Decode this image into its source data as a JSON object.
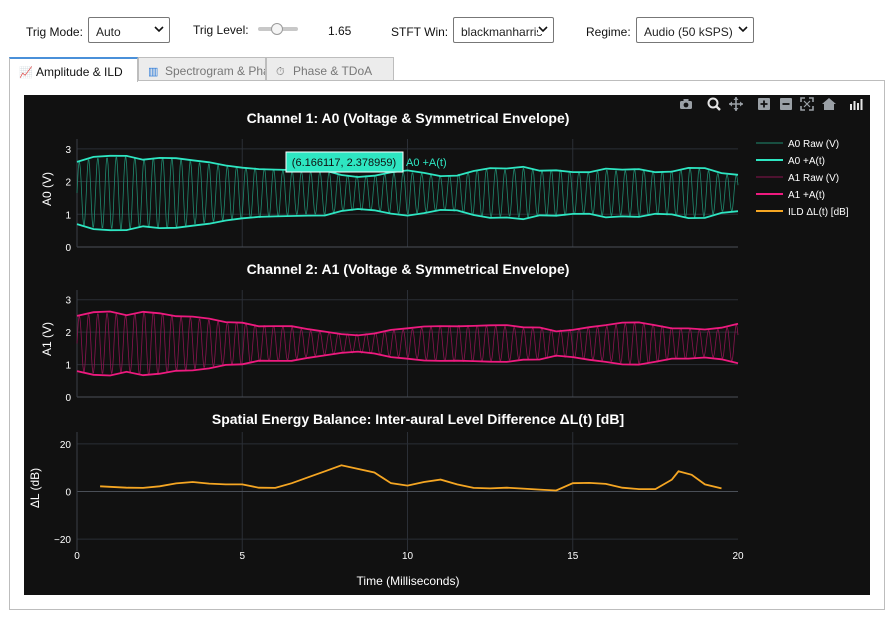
{
  "controls": {
    "trig_mode_label": "Trig Mode:",
    "trig_mode_value": "Auto",
    "trig_level_label": "Trig Level:",
    "trig_level_value": "1.65",
    "stft_label": "STFT Win:",
    "stft_value": "blackmanharris",
    "regime_label": "Regime:",
    "regime_value": "Audio (50 kSPS)"
  },
  "tabs": [
    {
      "label": "Amplitude & ILD",
      "icon": "chart-line-icon",
      "active": true
    },
    {
      "label": "Spectrogram & Pha",
      "icon": "bar-chart-icon",
      "active": false
    },
    {
      "label": "Phase & TDoA",
      "icon": "clock-icon",
      "active": false
    }
  ],
  "modebar": [
    "camera-icon",
    "zoom-icon",
    "pan-icon",
    "zoom-in-icon",
    "zoom-out-icon",
    "autoscale-icon",
    "reset-axes-icon",
    "plotly-logo-icon"
  ],
  "colors": {
    "a0_raw": "#1f8a6f",
    "a0_env": "#2ee6c2",
    "a1_raw": "#8a1450",
    "a1_env": "#ee1a7f",
    "ild": "#f5a623",
    "plot_bg": "#111111",
    "grid": "#2b2f36",
    "text": "#ffffff"
  },
  "hover": {
    "label": "(6.166117, 2.378959)",
    "series": "A0 +A(t)"
  },
  "legend": [
    "A0 Raw (V)",
    "A0 +A(t)",
    "A1 Raw (V)",
    "A1 +A(t)",
    "ILD ΔL(t) [dB]"
  ],
  "chart_data": [
    {
      "type": "line",
      "title": "Channel 1: A0 (Voltage & Symmetrical Envelope)",
      "xlabel": "",
      "ylabel": "A0 (V)",
      "xlim": [
        0,
        20
      ],
      "ylim": [
        0,
        3.3
      ],
      "yticks": [
        "0",
        "1",
        "2",
        "3"
      ],
      "series": [
        {
          "name": "A0 Raw (V)",
          "kind": "raw",
          "period": 0.28
        },
        {
          "name": "A0 +A(t)",
          "x": [
            0,
            0.5,
            1,
            1.5,
            2,
            2.5,
            3,
            3.5,
            4,
            4.5,
            5,
            5.5,
            6,
            6.5,
            7,
            7.5,
            8,
            8.5,
            9,
            9.5,
            10,
            10.5,
            11,
            11.5,
            12,
            12.5,
            13,
            13.5,
            14,
            14.5,
            15,
            15.5,
            16,
            16.5,
            17,
            17.5,
            18,
            18.5,
            19,
            19.5,
            20
          ],
          "y": [
            2.6,
            2.72,
            2.75,
            2.78,
            2.7,
            2.76,
            2.72,
            2.62,
            2.55,
            2.48,
            2.45,
            2.42,
            2.38,
            2.33,
            2.3,
            2.32,
            2.22,
            2.18,
            2.2,
            2.26,
            2.3,
            2.24,
            2.18,
            2.22,
            2.35,
            2.4,
            2.36,
            2.42,
            2.34,
            2.38,
            2.32,
            2.28,
            2.36,
            2.33,
            2.38,
            2.32,
            2.34,
            2.42,
            2.38,
            2.22,
            2.2
          ]
        }
      ]
    },
    {
      "type": "line",
      "title": "Channel 2: A1 (Voltage & Symmetrical Envelope)",
      "xlabel": "",
      "ylabel": "A1 (V)",
      "xlim": [
        0,
        20
      ],
      "ylim": [
        0,
        3.3
      ],
      "yticks": [
        "0",
        "1",
        "2",
        "3"
      ],
      "series": [
        {
          "name": "A1 Raw (V)",
          "kind": "raw",
          "period": 0.28
        },
        {
          "name": "A1 +A(t)",
          "x": [
            0,
            0.5,
            1,
            1.5,
            2,
            2.5,
            3,
            3.5,
            4,
            4.5,
            5,
            5.5,
            6,
            6.5,
            7,
            7.5,
            8,
            8.5,
            9,
            9.5,
            10,
            10.5,
            11,
            11.5,
            12,
            12.5,
            13,
            13.5,
            14,
            14.5,
            15,
            15.5,
            16,
            16.5,
            17,
            17.5,
            18,
            18.5,
            19,
            19.5,
            20
          ],
          "y": [
            2.5,
            2.58,
            2.6,
            2.52,
            2.66,
            2.62,
            2.5,
            2.45,
            2.38,
            2.3,
            2.32,
            2.22,
            2.2,
            2.16,
            2.05,
            2.0,
            1.96,
            1.94,
            1.98,
            2.05,
            2.08,
            2.15,
            2.2,
            2.22,
            2.22,
            2.2,
            2.18,
            2.12,
            2.15,
            2.06,
            2.1,
            2.15,
            2.18,
            2.26,
            2.3,
            2.25,
            2.15,
            2.12,
            2.05,
            2.1,
            2.25
          ]
        }
      ]
    },
    {
      "type": "line",
      "title": "Spatial Energy Balance: Inter-aural Level Difference ΔL(t) [dB]",
      "xlabel": "Time (Milliseconds)",
      "ylabel": "ΔL (dB)",
      "xlim": [
        0,
        20
      ],
      "ylim": [
        -25,
        25
      ],
      "xticks": [
        "0",
        "5",
        "10",
        "15",
        "20"
      ],
      "yticks": [
        "−20",
        "0",
        "20"
      ],
      "series": [
        {
          "name": "ILD ΔL(t) [dB]",
          "x": [
            0.7,
            1.5,
            2,
            2.5,
            3,
            3.5,
            4,
            4.5,
            5,
            5.5,
            6,
            6.5,
            7,
            7.5,
            8,
            8.5,
            9,
            9.5,
            10,
            10.5,
            11,
            11.5,
            12,
            12.5,
            13,
            13.5,
            14,
            14.5,
            15,
            15.5,
            16,
            16.5,
            17,
            17.5,
            18,
            18.2,
            18.6,
            19,
            19.5
          ],
          "y": [
            2.2,
            1.6,
            1.5,
            2.2,
            3.4,
            4.0,
            3.3,
            3.0,
            3.0,
            1.6,
            1.5,
            3.5,
            6.0,
            8.5,
            11.0,
            9.5,
            8.0,
            3.5,
            2.5,
            4.0,
            5.0,
            3.0,
            1.5,
            1.3,
            1.6,
            1.2,
            0.8,
            0.4,
            3.5,
            3.6,
            3.2,
            1.6,
            1.0,
            1.0,
            5.0,
            8.5,
            7.0,
            3.0,
            1.3
          ]
        }
      ]
    }
  ]
}
